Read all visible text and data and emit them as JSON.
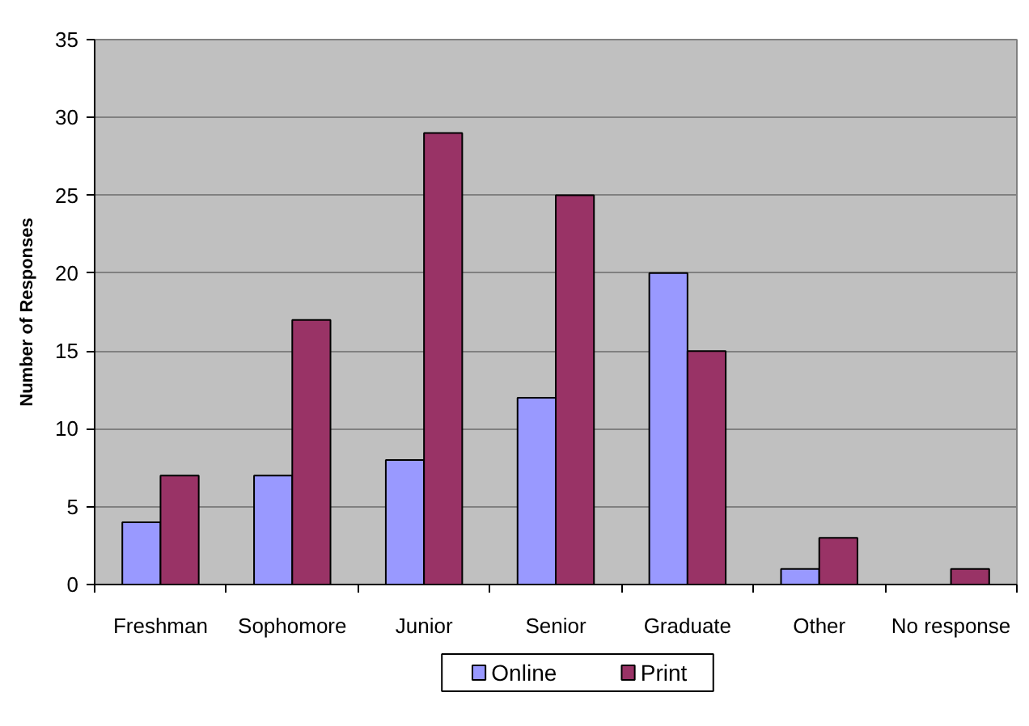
{
  "chart_data": {
    "type": "bar",
    "ylabel": "Number of Responses",
    "categories": [
      "Freshman",
      "Sophomore",
      "Junior",
      "Senior",
      "Graduate",
      "Other",
      "No response"
    ],
    "series": [
      {
        "name": "Online",
        "color": "#9999ff",
        "values": [
          4,
          7,
          8,
          12,
          20,
          1,
          null
        ]
      },
      {
        "name": "Print",
        "color": "#993366",
        "values": [
          7,
          17,
          29,
          25,
          15,
          3,
          1
        ]
      }
    ],
    "ylim": [
      0,
      35
    ],
    "yticks": [
      0,
      5,
      10,
      15,
      20,
      25,
      30,
      35
    ],
    "grid": "y",
    "legend": "bottom"
  }
}
